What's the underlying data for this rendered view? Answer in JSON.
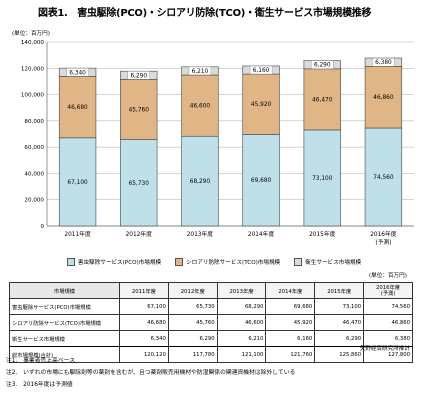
{
  "figure_title": "図表1.　害虫駆除(PCO)・シロアリ防除(TCO)・衛生サービス市場規模推移",
  "chart_data": {
    "type": "bar",
    "stacked": true,
    "unit_label": "(単位：百万円)",
    "categories": [
      "2011年度",
      "2012年度",
      "2013年度",
      "2014年度",
      "2015年度",
      "2016年度"
    ],
    "category_sub": [
      "",
      "",
      "",
      "",
      "",
      "(予測)"
    ],
    "series": [
      {
        "name": "害虫駆除サービス(PCO)市場規模",
        "color": "#bfe0e8",
        "values": [
          67100,
          65730,
          68290,
          69680,
          73100,
          74560
        ]
      },
      {
        "name": "シロアリ防除サービス(TCO)市場規模",
        "color": "#e0b687",
        "values": [
          46680,
          45760,
          46600,
          45920,
          46470,
          46860
        ]
      },
      {
        "name": "衛生サービス市場規模",
        "color": "#dadada",
        "values": [
          6340,
          6290,
          6210,
          6160,
          6290,
          6380
        ]
      }
    ],
    "data_labels": [
      [
        "67,100",
        "65,730",
        "68,290",
        "69,680",
        "73,100",
        "74,560"
      ],
      [
        "46,680",
        "45,760",
        "46,600",
        "45,920",
        "46,470",
        "46,860"
      ],
      [
        "6,340",
        "6,290",
        "6,210",
        "6,160",
        "6,290",
        "6,380"
      ]
    ],
    "ylim": [
      0,
      140000
    ],
    "yticks": [
      0,
      20000,
      40000,
      60000,
      80000,
      100000,
      120000,
      140000
    ],
    "ytick_labels": [
      "0",
      "20,000",
      "40,000",
      "60,000",
      "80,000",
      "100,000",
      "120,000",
      "140,000"
    ],
    "grid": true,
    "legend_position": "bottom"
  },
  "table": {
    "unit_label": "(単位：百万円)",
    "header_label": "市場規模",
    "columns": [
      "2011年度",
      "2012年度",
      "2013年度",
      "2014年度",
      "2015年度",
      "2016年度\n(予測)"
    ],
    "rows": [
      {
        "label": "害虫駆除サービス(PCO)市場規模",
        "values": [
          "67,100",
          "65,730",
          "68,290",
          "69,680",
          "73,100",
          "74,560"
        ]
      },
      {
        "label": "シロアリ防除サービス(TCO)市場規模",
        "values": [
          "46,680",
          "45,760",
          "46,600",
          "45,920",
          "46,470",
          "46,860"
        ]
      },
      {
        "label": "衛生サービス市場規模",
        "values": [
          "6,340",
          "6,290",
          "6,210",
          "6,160",
          "6,290",
          "6,380"
        ]
      },
      {
        "label": "総市場規模(合計)",
        "values": [
          "120,120",
          "117,780",
          "121,100",
          "121,760",
          "125,860",
          "127,800"
        ]
      }
    ]
  },
  "source": "矢野経済研究所推計",
  "notes": [
    "注1.　事業者売上高ベース",
    "注2.　いずれの市場にも駆除剤等の薬剤を含むが、且つ薬剤販売用機材や防湿関係の関連資機材は除外している",
    "注3.　2016年度は予測値"
  ]
}
